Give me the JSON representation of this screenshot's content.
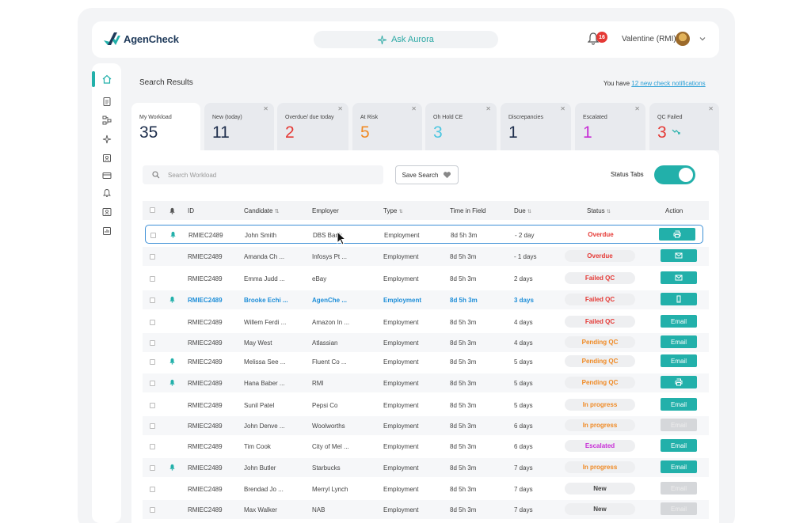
{
  "app": {
    "name": "AgenCheck"
  },
  "header": {
    "ask_label": "Ask Aurora",
    "notification_count": "16",
    "user_name": "Valentine (RMI)"
  },
  "page": {
    "title": "Search Results",
    "notif_prefix": "You have ",
    "notif_link": "12 new check notifications"
  },
  "tabs": [
    {
      "label": "My Workload",
      "count": "35",
      "color": "#1f2f4d",
      "closable": false
    },
    {
      "label": "New (today)",
      "count": "11",
      "color": "#1f2f4d",
      "closable": true
    },
    {
      "label": "Overdue/ due today",
      "count": "2",
      "color": "#e53935",
      "closable": true
    },
    {
      "label": "At Risk",
      "count": "5",
      "color": "#f08a24",
      "closable": true
    },
    {
      "label": "Oh Hold CE",
      "count": "3",
      "color": "#4cc6e0",
      "closable": true
    },
    {
      "label": "Discrepancies",
      "count": "1",
      "color": "#1f2f4d",
      "closable": true
    },
    {
      "label": "Escalated",
      "count": "1",
      "color": "#c72bd6",
      "closable": true
    },
    {
      "label": "QC Failed",
      "count": "3",
      "color": "#e53935",
      "closable": true
    }
  ],
  "toolbar": {
    "search_placeholder": "Search Workload",
    "save_search": "Save Search",
    "status_tabs": "Status Tabs"
  },
  "table": {
    "headers": [
      "ID",
      "Candidate",
      "Employer",
      "Type",
      "Time in Field",
      "Due",
      "Status",
      "Action"
    ],
    "rows": [
      {
        "id": "RMIEC2489",
        "candidate": "John Smith",
        "employer": "DBS Bank",
        "type": "Employment",
        "time": "8d 5h 3m",
        "due": "- 2 day",
        "status": "Overdue",
        "action": "print",
        "bell": true
      },
      {
        "id": "RMIEC2489",
        "candidate": "Amanda Ch ...",
        "employer": "Infosys Pt ...",
        "type": "Employment",
        "time": "8d 5h 3m",
        "due": "- 1 days",
        "status": "Overdue",
        "action": "mail",
        "bell": false
      },
      {
        "id": "RMIEC2489",
        "candidate": "Emma Judd ...",
        "employer": "eBay",
        "type": "Employment",
        "time": "8d 5h 3m",
        "due": "2 days",
        "status": "Failed QC",
        "action": "mail",
        "bell": false
      },
      {
        "id": "RMIEC2489",
        "candidate": "Brooke Echi ...",
        "employer": "AgenChe ...",
        "type": "Employment",
        "time": "8d 5h 3m",
        "due": "3 days",
        "status": "Failed QC",
        "action": "phone",
        "bell": true
      },
      {
        "id": "RMIEC2489",
        "candidate": "Willem Ferdi ...",
        "employer": "Amazon In ...",
        "type": "Employment",
        "time": "8d 5h 3m",
        "due": "4 days",
        "status": "Failed QC",
        "action": "Email",
        "bell": false
      },
      {
        "id": "RMIEC2489",
        "candidate": "May West",
        "employer": "Atlassian",
        "type": "Employment",
        "time": "8d 5h 3m",
        "due": "4 days",
        "status": "Pending QC",
        "action": "Email",
        "bell": false
      },
      {
        "id": "RMIEC2489",
        "candidate": "Melissa See ...",
        "employer": "Fluent Co ...",
        "type": "Employment",
        "time": "8d 5h 3m",
        "due": "5 days",
        "status": "Pending QC",
        "action": "Email",
        "bell": true
      },
      {
        "id": "RMIEC2489",
        "candidate": "Hana Baber ...",
        "employer": "RMI",
        "type": "Employment",
        "time": "8d 5h 3m",
        "due": "5 days",
        "status": "Pending QC",
        "action": "print",
        "bell": true
      },
      {
        "id": "RMIEC2489",
        "candidate": "Sunil Patel",
        "employer": "Pepsi Co",
        "type": "Employment",
        "time": "8d 5h 3m",
        "due": "5 days",
        "status": "In progress",
        "action": "Email",
        "bell": false
      },
      {
        "id": "RMIEC2489",
        "candidate": "John Denve ...",
        "employer": "Woolworths",
        "type": "Employment",
        "time": "8d 5h 3m",
        "due": "6 days",
        "status": "In progress",
        "action": "Email",
        "disabled": true,
        "bell": false
      },
      {
        "id": "RMIEC2489",
        "candidate": "Tim Cook",
        "employer": "City of Mel ...",
        "type": "Employment",
        "time": "8d 5h 3m",
        "due": "6 days",
        "status": "Escalated",
        "action": "Email",
        "bell": false
      },
      {
        "id": "RMIEC2489",
        "candidate": "John Butler",
        "employer": "Starbucks",
        "type": "Employment",
        "time": "8d 5h 3m",
        "due": "7 days",
        "status": "In progress",
        "action": "Email",
        "bell": true
      },
      {
        "id": "RMIEC2489",
        "candidate": "Brendad Jo ...",
        "employer": "Merryl Lynch",
        "type": "Employment",
        "time": "8d 5h 3m",
        "due": "7 days",
        "status": "New",
        "action": "Email",
        "disabled": true,
        "bell": false
      },
      {
        "id": "RMIEC2489",
        "candidate": "Max Walker",
        "employer": "NAB",
        "type": "Employment",
        "time": "8d 5h 3m",
        "due": "7 days",
        "status": "New",
        "action": "Email",
        "disabled": true,
        "bell": false
      }
    ]
  },
  "status_colors": {
    "Overdue": "#e53935",
    "Failed QC": "#e53935",
    "Pending QC": "#f08a24",
    "In progress": "#f08a24",
    "Escalated": "#c72bd6",
    "New": "#444444"
  },
  "accent": "#22b0aa"
}
